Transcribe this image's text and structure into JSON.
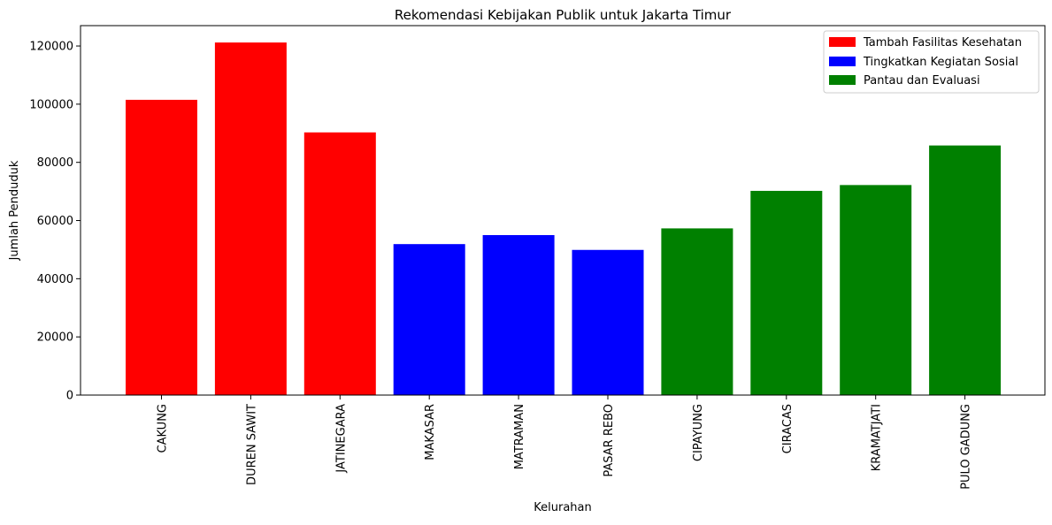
{
  "chart_data": {
    "type": "bar",
    "title": "Rekomendasi Kebijakan Publik untuk Jakarta Timur",
    "xlabel": "Kelurahan",
    "ylabel": "Jumlah Penduduk",
    "ylim": [
      0,
      127000
    ],
    "yticks": [
      0,
      20000,
      40000,
      60000,
      80000,
      100000,
      120000
    ],
    "grid": false,
    "legend_position": "top-right",
    "categories": [
      "CAKUNG",
      "DUREN SAWIT",
      "JATINEGARA",
      "MAKASAR",
      "MATRAMAN",
      "PASAR REBO",
      "CIPAYUNG",
      "CIRACAS",
      "KRAMATJATI",
      "PULO GADUNG"
    ],
    "values": [
      101500,
      121200,
      90300,
      51900,
      55000,
      49900,
      57300,
      70200,
      72200,
      85800
    ],
    "groups": [
      0,
      0,
      0,
      1,
      1,
      1,
      2,
      2,
      2,
      2
    ],
    "legend": [
      {
        "label": "Tambah Fasilitas Kesehatan",
        "color": "#ff0000"
      },
      {
        "label": "Tingkatkan Kegiatan Sosial",
        "color": "#0000ff"
      },
      {
        "label": "Pantau dan Evaluasi",
        "color": "#008000"
      }
    ]
  }
}
